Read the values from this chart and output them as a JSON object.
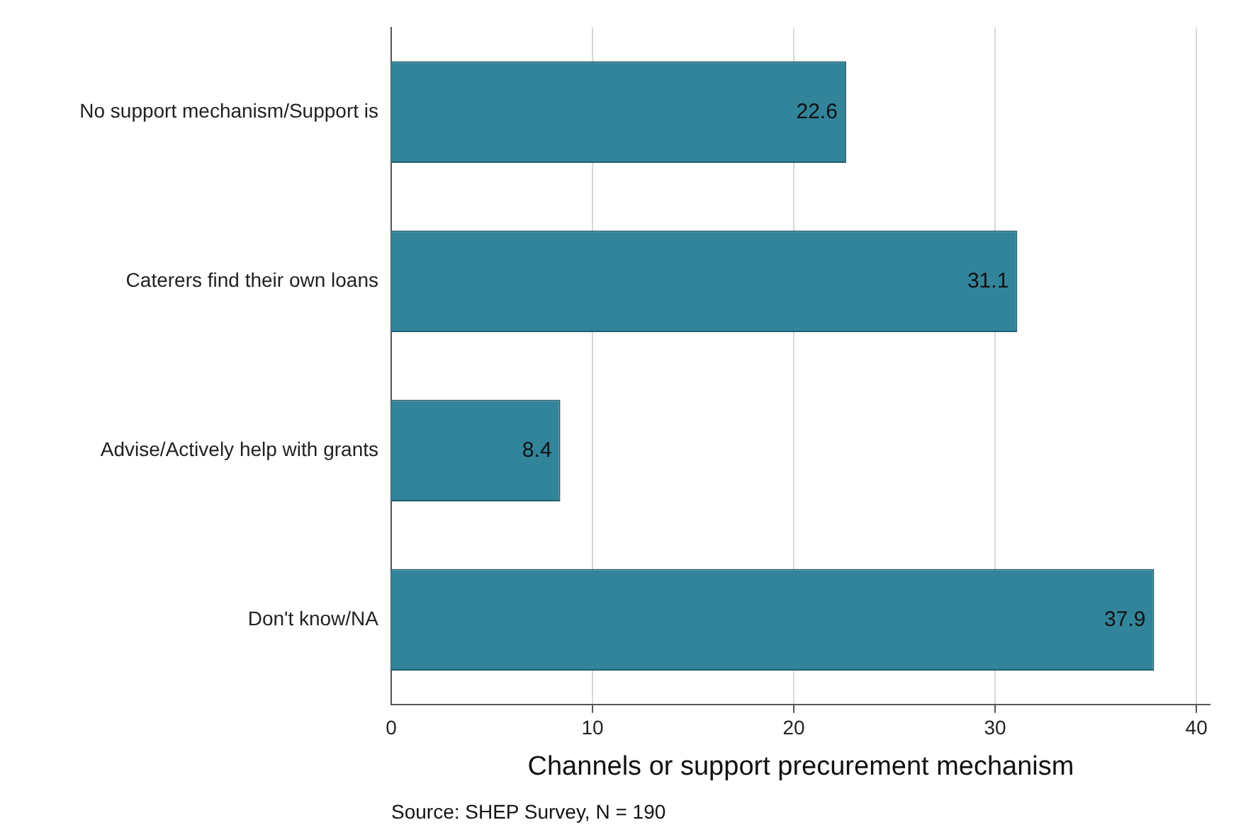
{
  "chart_data": {
    "type": "bar",
    "orientation": "horizontal",
    "xlabel": "Channels or support precurement mechanism",
    "annotations": [
      "Source: SHEP Survey, N = 190"
    ],
    "categories": [
      "No support mechanism/Support is",
      "Caterers find their own loans",
      "Advise/Actively help with grants",
      "Don't know/NA"
    ],
    "values": [
      22.6,
      31.1,
      8.4,
      37.9
    ],
    "color": "#32849a",
    "data_labels": true,
    "xlim": [
      0,
      40.7
    ],
    "xticks": [
      0,
      10,
      20,
      30,
      40
    ],
    "grid": "x",
    "legend": false
  }
}
